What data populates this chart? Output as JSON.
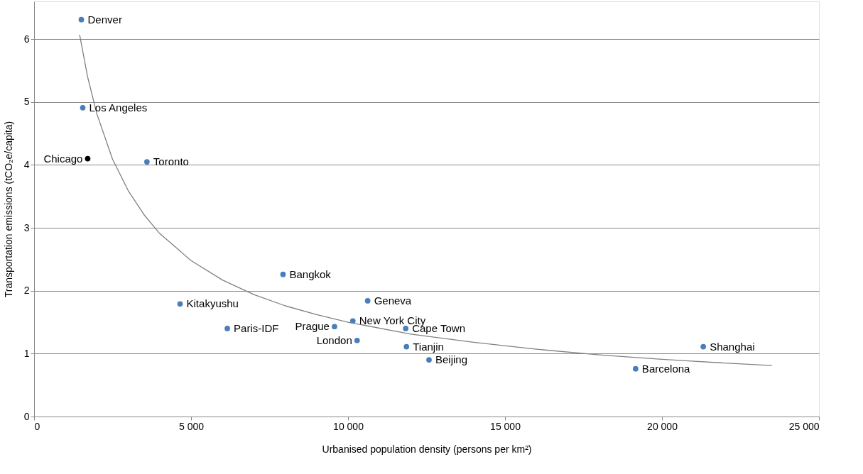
{
  "chart_data": {
    "type": "scatter",
    "xlabel": "Urbanised population density (persons per km²)",
    "ylabel": "Transportation emissions (tCO₂e/capita)",
    "xlim": [
      0,
      25000
    ],
    "xticks": [
      0,
      {
        "value": 5000,
        "label": "5 000"
      },
      {
        "value": 10000,
        "label": "10 000"
      },
      {
        "value": 15000,
        "label": "15 000"
      },
      {
        "value": 20000,
        "label": "20 000"
      },
      {
        "value": 25000,
        "label": "25 000"
      }
    ],
    "ylim": [
      0,
      6.6
    ],
    "yticks": [
      0,
      1,
      2,
      3,
      4,
      5,
      6
    ],
    "grid": "y",
    "marker": "circle",
    "series": [
      {
        "x": [
          1505,
          1550,
          1707,
          3594,
          7929,
          4650,
          6155,
          10625,
          9569,
          10153,
          10288,
          11837,
          11860,
          12579,
          19160,
          21316
        ],
        "values": [
          6.31,
          4.91,
          4.1,
          4.05,
          2.26,
          1.79,
          1.4,
          1.84,
          1.43,
          1.52,
          1.21,
          1.4,
          1.11,
          0.9,
          0.76,
          1.11
        ],
        "colors": [
          "#4a7ebb",
          "#4a7ebb",
          "#000000",
          "#4a7ebb",
          "#4a7ebb",
          "#4a7ebb",
          "#4a7ebb",
          "#4a7ebb",
          "#4a7ebb",
          "#4a7ebb",
          "#4a7ebb",
          "#4a7ebb",
          "#4a7ebb",
          "#4a7ebb",
          "#4a7ebb",
          "#4a7ebb"
        ]
      },
      {
        "type": "line",
        "marker": "none",
        "color": "#808080",
        "x": [
          1450,
          1700,
          2000,
          2500,
          3000,
          3500,
          4000,
          5000,
          6000,
          7000,
          8000,
          9000,
          10000,
          12000,
          14000,
          16000,
          18000,
          20000,
          22000,
          23500
        ],
        "values": [
          6.07,
          5.41,
          4.81,
          4.09,
          3.59,
          3.21,
          2.91,
          2.48,
          2.17,
          1.94,
          1.76,
          1.62,
          1.5,
          1.31,
          1.18,
          1.07,
          0.98,
          0.91,
          0.85,
          0.81
        ]
      }
    ],
    "annotations": [
      {
        "text": "Denver",
        "x": 1505,
        "y": 6.31
      },
      {
        "text": "Los Angeles",
        "x": 1550,
        "y": 4.91
      },
      {
        "text": "Chicago",
        "x": 1707,
        "y": 4.1
      },
      {
        "text": "Toronto",
        "x": 3594,
        "y": 4.05
      },
      {
        "text": "Bangkok",
        "x": 7929,
        "y": 2.26
      },
      {
        "text": "Kitakyushu",
        "x": 4650,
        "y": 1.79
      },
      {
        "text": "Paris-IDF",
        "x": 6155,
        "y": 1.4
      },
      {
        "text": "Geneva",
        "x": 10625,
        "y": 1.84
      },
      {
        "text": "Prague",
        "x": 9569,
        "y": 1.43
      },
      {
        "text": "New York City",
        "x": 10153,
        "y": 1.52
      },
      {
        "text": "London",
        "x": 10288,
        "y": 1.21
      },
      {
        "text": "Cape Town",
        "x": 11837,
        "y": 1.4
      },
      {
        "text": "Tianjin",
        "x": 11860,
        "y": 1.11
      },
      {
        "text": "Beijing",
        "x": 12579,
        "y": 0.9
      },
      {
        "text": "Barcelona",
        "x": 19160,
        "y": 0.76
      },
      {
        "text": "Shanghai",
        "x": 21316,
        "y": 1.11
      }
    ]
  }
}
